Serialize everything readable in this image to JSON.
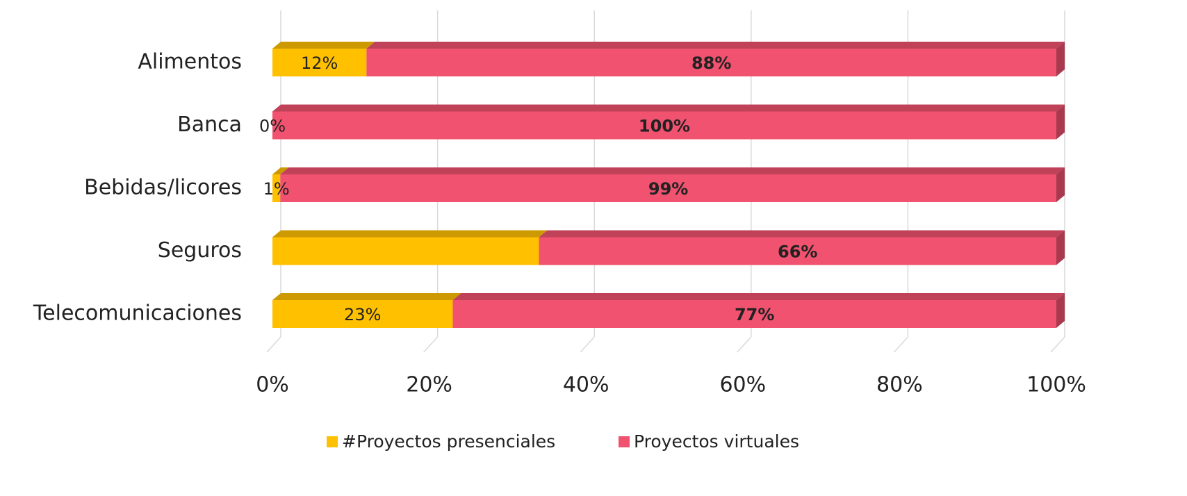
{
  "chart_data": {
    "type": "stacked-barh",
    "categories": [
      "Alimentos",
      "Banca",
      "Bebidas/licores",
      "Seguros",
      "Telecomunicaciones"
    ],
    "series": [
      {
        "name": "#Proyectos presenciales",
        "color": "#FFC000",
        "values": [
          12,
          0,
          1,
          34,
          23
        ],
        "value_labels": [
          "12%",
          "0%",
          "1%",
          null,
          "23%"
        ]
      },
      {
        "name": "Proyectos virtuales",
        "color": "#F0526F",
        "values": [
          88,
          100,
          99,
          66,
          77
        ],
        "value_labels": [
          "88%",
          "100%",
          "99%",
          "66%",
          "77%"
        ]
      }
    ],
    "xlim": [
      0,
      100
    ],
    "xticks": [
      {
        "value": 0,
        "label": "0%"
      },
      {
        "value": 20,
        "label": "20%"
      },
      {
        "value": 40,
        "label": "40%"
      },
      {
        "value": 60,
        "label": "60%"
      },
      {
        "value": 80,
        "label": "80%"
      },
      {
        "value": 100,
        "label": "100%"
      }
    ],
    "grid": true,
    "legend": "bottom"
  }
}
